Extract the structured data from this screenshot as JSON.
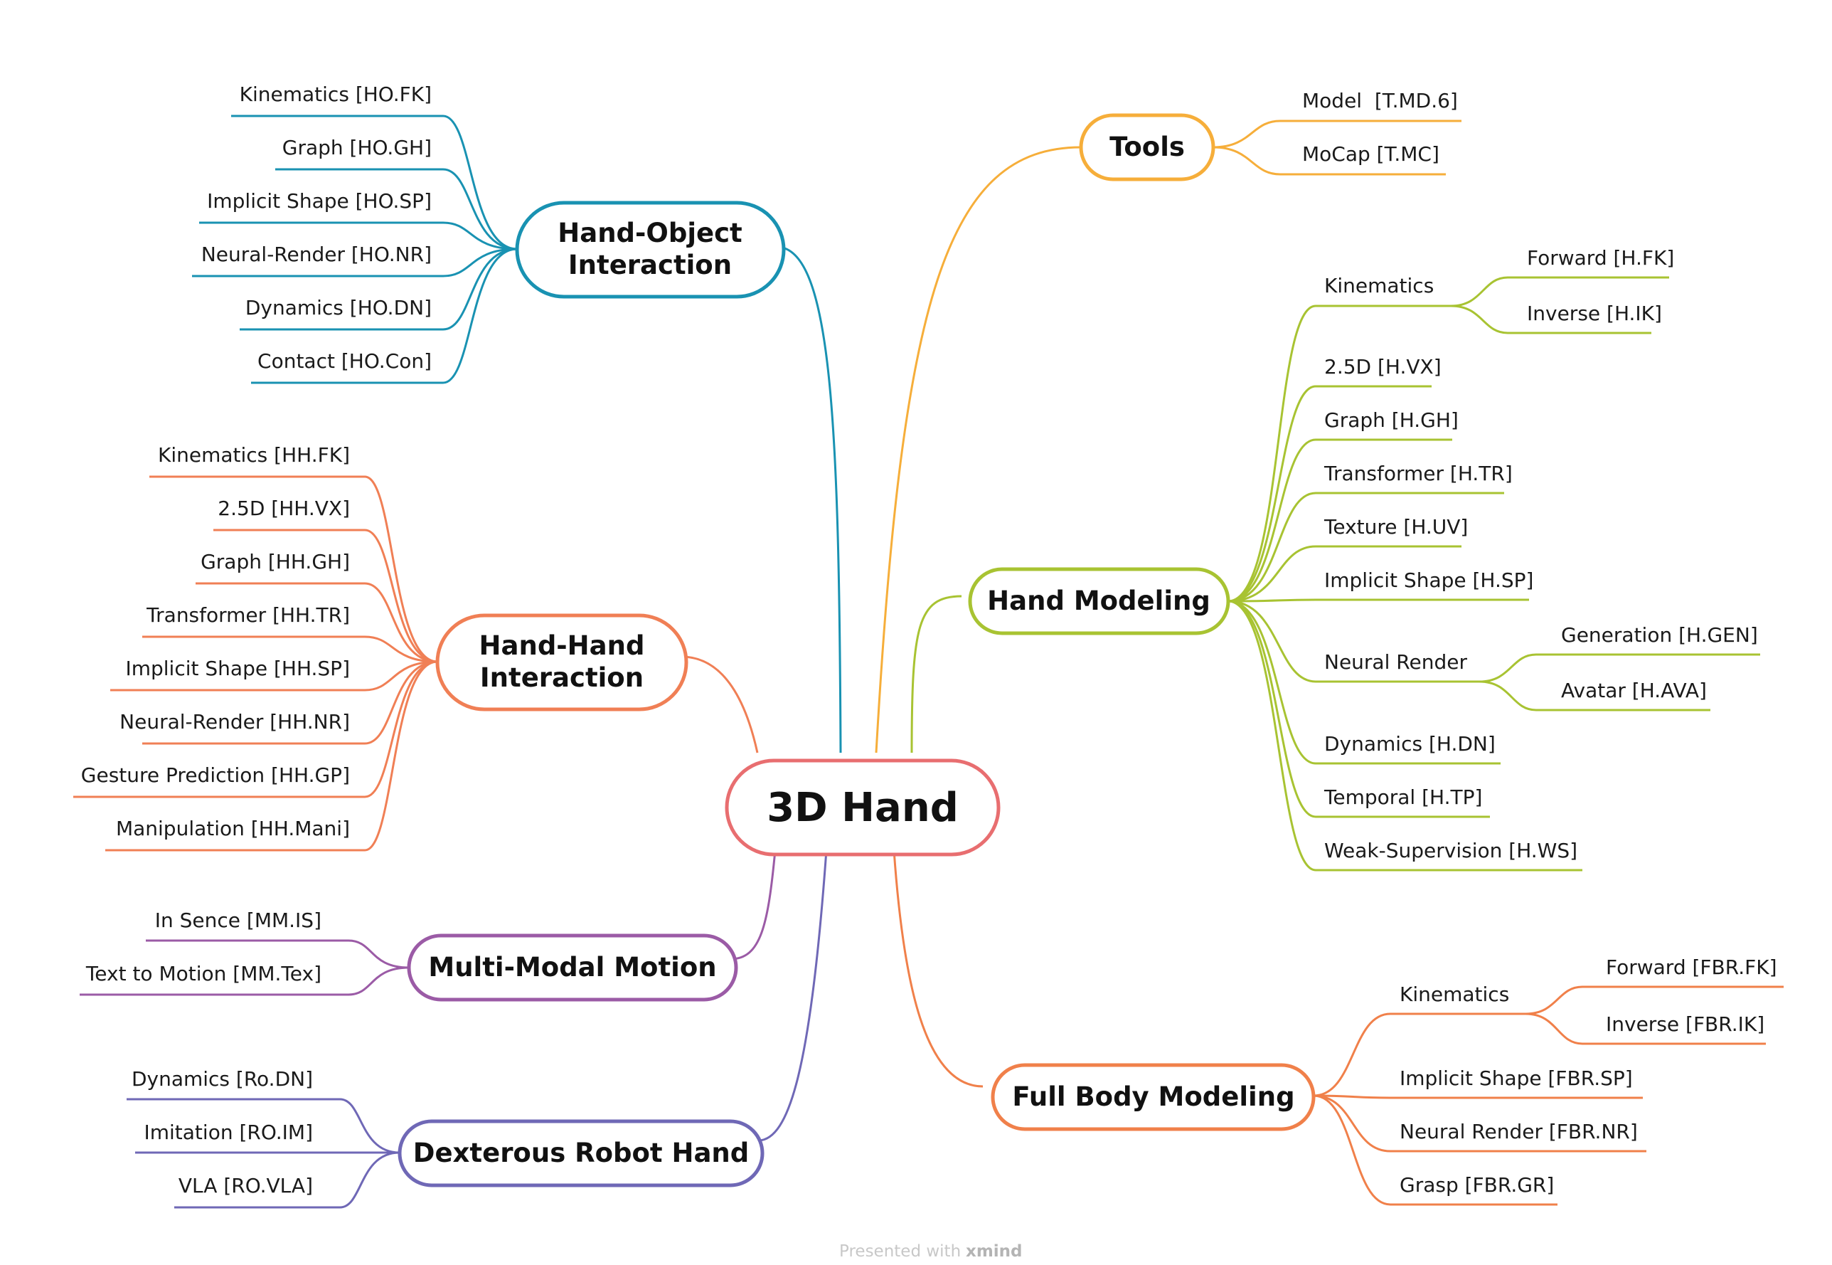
{
  "center": {
    "label": "3D Hand",
    "color": "#e86e70"
  },
  "branches": {
    "tools": {
      "label": "Tools",
      "color": "#f6ae3a",
      "items": [
        "Model  [T.MD.6]",
        "MoCap [T.MC]"
      ]
    },
    "hand_modeling": {
      "label": "Hand Modeling",
      "color": "#a8c332",
      "kinematics": {
        "label": "Kinematics",
        "children": [
          "Forward [H.FK]",
          "Inverse [H.IK]"
        ]
      },
      "items": [
        "2.5D [H.VX]",
        "Graph [H.GH]",
        "Transformer [H.TR]",
        "Texture [H.UV]",
        "Implicit Shape [H.SP]"
      ],
      "neural_render": {
        "label": "Neural Render",
        "children": [
          "Generation [H.GEN]",
          "Avatar [H.AVA]"
        ]
      },
      "items2": [
        "Dynamics [H.DN]",
        "Temporal [H.TP]",
        "Weak-Supervision [H.WS]"
      ]
    },
    "full_body": {
      "label": "Full Body Modeling",
      "color": "#f0804a",
      "kinematics": {
        "label": "Kinematics",
        "children": [
          "Forward [FBR.FK]",
          "Inverse [FBR.IK]"
        ]
      },
      "items": [
        "Implicit Shape [FBR.SP]",
        "Neural Render [FBR.NR]",
        "Grasp [FBR.GR]"
      ]
    },
    "hand_object": {
      "label_line1": "Hand-Object",
      "label_line2": "Interaction",
      "color": "#1992b2",
      "items": [
        "Kinematics [HO.FK]",
        "Graph [HO.GH]",
        "Implicit Shape [HO.SP]",
        "Neural-Render [HO.NR]",
        "Dynamics [HO.DN]",
        "Contact [HO.Con]"
      ]
    },
    "hand_hand": {
      "label_line1": "Hand-Hand",
      "label_line2": "Interaction",
      "color": "#f07f55",
      "items": [
        "Kinematics [HH.FK]",
        "2.5D [HH.VX]",
        "Graph [HH.GH]",
        "Transformer [HH.TR]",
        "Implicit Shape [HH.SP]",
        "Neural-Render [HH.NR]",
        "Gesture Prediction [HH.GP]",
        "Manipulation [HH.Mani]"
      ]
    },
    "multi_modal": {
      "label": "Multi-Modal Motion",
      "color": "#9b5ba6",
      "items": [
        "In Sence [MM.IS]",
        "Text to Motion [MM.Tex]"
      ]
    },
    "robot": {
      "label": "Dexterous Robot Hand",
      "color": "#6f68b6",
      "items": [
        "Dynamics [Ro.DN]",
        "Imitation [RO.IM]",
        "VLA [RO.VLA]"
      ]
    }
  },
  "footer": {
    "prefix": "Presented with",
    "brand": "xmind"
  }
}
